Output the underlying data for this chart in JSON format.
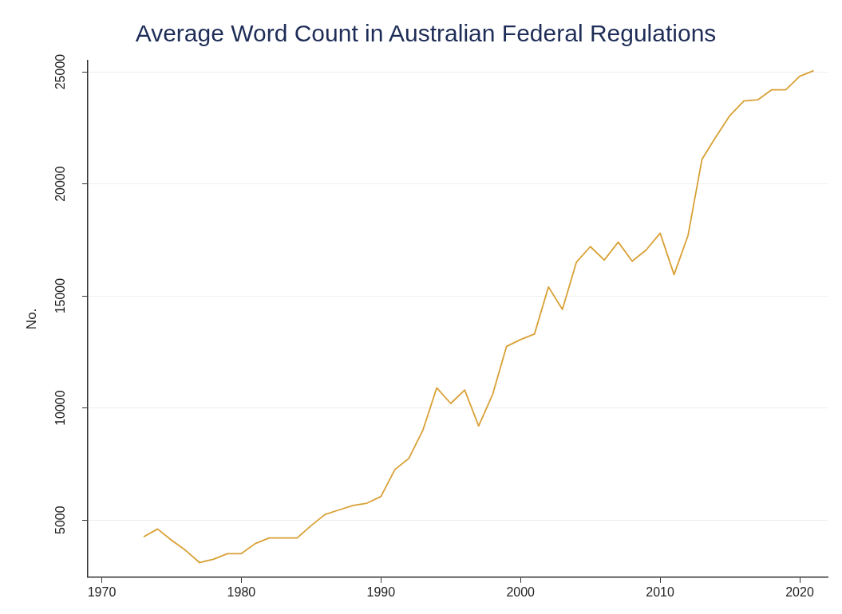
{
  "chart_data": {
    "type": "line",
    "title": "Average Word Count in Australian Federal Regulations",
    "ylabel": "No.",
    "x": [
      1973,
      1974,
      1975,
      1976,
      1977,
      1978,
      1979,
      1980,
      1981,
      1982,
      1983,
      1984,
      1985,
      1986,
      1987,
      1988,
      1989,
      1990,
      1991,
      1992,
      1993,
      1994,
      1995,
      1996,
      1997,
      1998,
      1999,
      2000,
      2001,
      2002,
      2003,
      2004,
      2005,
      2006,
      2007,
      2008,
      2009,
      2010,
      2011,
      2012,
      2013,
      2014,
      2015,
      2016,
      2017,
      2018,
      2019,
      2020,
      2021
    ],
    "series": [
      {
        "color": "#d9a035",
        "values": [
          4250,
          4600,
          4100,
          3650,
          3100,
          3250,
          3500,
          3500,
          3950,
          4200,
          4200,
          4200,
          4750,
          5250,
          5450,
          5650,
          5750,
          6050,
          7250,
          7750,
          9000,
          10900,
          10200,
          10800,
          9200,
          10600,
          12750,
          13050,
          13300,
          15400,
          14400,
          16500,
          17200,
          16600,
          17400,
          16550,
          17050,
          17800,
          15950,
          17700,
          21100,
          22100,
          23050,
          23700,
          23750,
          24200,
          24200,
          24800,
          25050
        ]
      }
    ],
    "xlim": [
      1969,
      2022
    ],
    "xticks": [
      1970,
      1980,
      1990,
      2000,
      2010,
      2020
    ],
    "ylim": [
      2450,
      25500
    ],
    "yticks": [
      5000,
      10000,
      15000,
      20000,
      25000
    ],
    "grid": "y",
    "legend": false,
    "marker": "none",
    "line_style": "solid"
  }
}
